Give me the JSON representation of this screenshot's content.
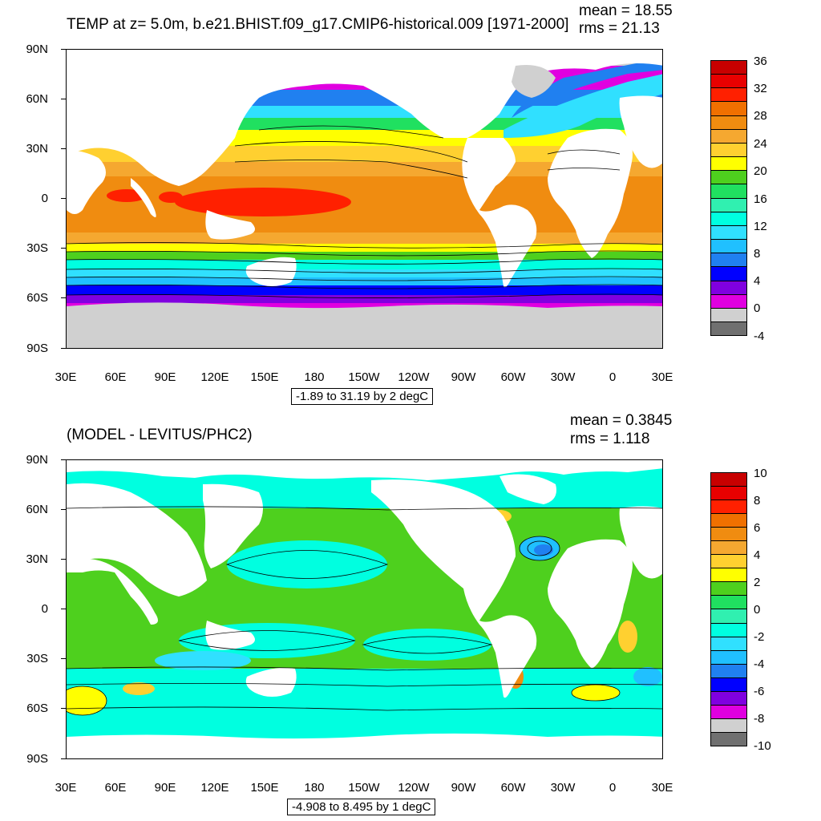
{
  "panel1": {
    "title": "TEMP at z=   5.0m, b.e21.BHIST.f09_g17.CMIP6-historical.009 [1971-2000]",
    "mean_label": "mean = 18.55",
    "rms_label": "rms = 21.13",
    "range_label": "-1.89 to 31.19 by 2 degC",
    "colorbar_labels": [
      "36",
      "32",
      "28",
      "24",
      "20",
      "16",
      "12",
      "8",
      "4",
      "0",
      "-4"
    ],
    "colorbar_colors": [
      "#c80000",
      "#e80000",
      "#ff2000",
      "#f07000",
      "#f08c10",
      "#f5a830",
      "#ffd030",
      "#ffff00",
      "#4ed01e",
      "#20e060",
      "#30f0b0",
      "#00ffe0",
      "#30e0ff",
      "#20c0ff",
      "#2080f0",
      "#0000ff",
      "#8000e0",
      "#e000e0",
      "#d0d0d0",
      "#707070"
    ]
  },
  "panel2": {
    "title": "(MODEL - LEVITUS/PHC2)",
    "mean_label": "mean = 0.3845",
    "rms_label": "rms = 1.118",
    "range_label": "-4.908 to 8.495 by 1 degC",
    "colorbar_labels": [
      "10",
      "8",
      "6",
      "4",
      "2",
      "0",
      "-2",
      "-4",
      "-6",
      "-8",
      "-10"
    ],
    "colorbar_colors": [
      "#c80000",
      "#e80000",
      "#ff2000",
      "#f07000",
      "#f08c10",
      "#f5a830",
      "#ffd030",
      "#ffff00",
      "#4ed01e",
      "#20e060",
      "#30f0b0",
      "#00ffe0",
      "#30e0ff",
      "#20c0ff",
      "#2080f0",
      "#0000ff",
      "#8000e0",
      "#e000e0",
      "#d0d0d0",
      "#707070"
    ]
  },
  "axes": {
    "lat_labels": [
      "90N",
      "60N",
      "30N",
      "0",
      "30S",
      "60S",
      "90S"
    ],
    "lon_labels": [
      "30E",
      "60E",
      "90E",
      "120E",
      "150E",
      "180",
      "150W",
      "120W",
      "90W",
      "60W",
      "30W",
      "0",
      "30E"
    ]
  },
  "colors": {
    "land": "#ffffff",
    "sea_ice": "#d2d2d2",
    "line": "#000000"
  }
}
